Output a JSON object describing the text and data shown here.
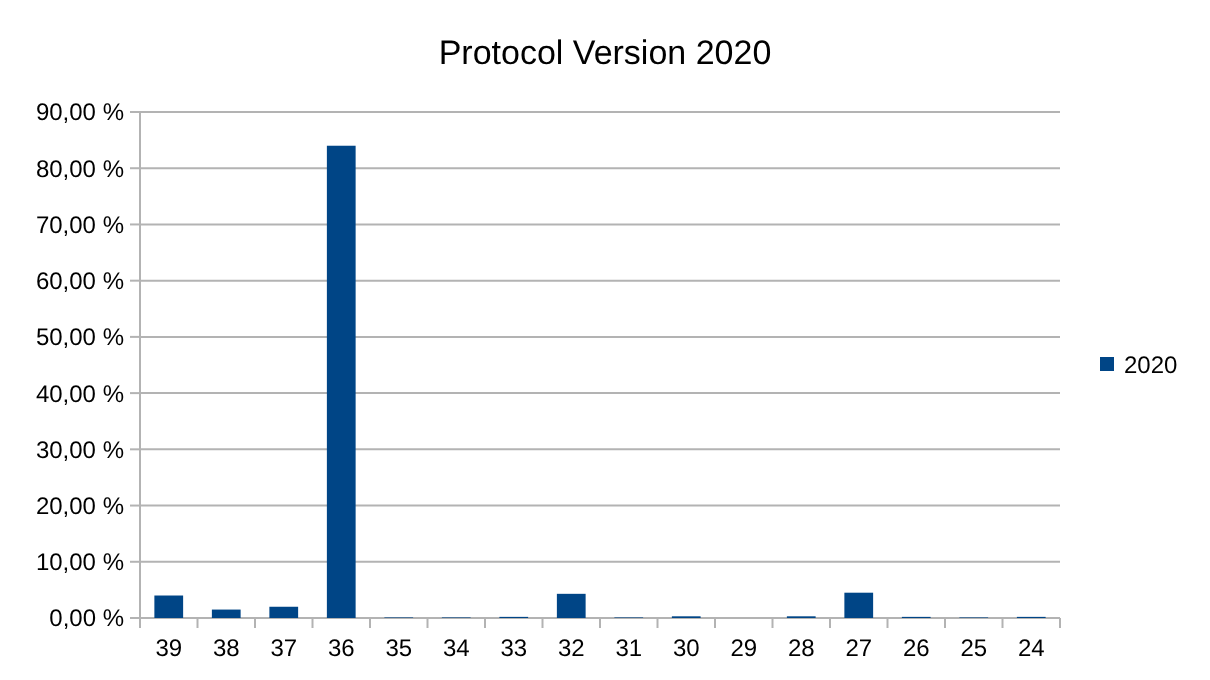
{
  "chart_data": {
    "type": "bar",
    "title": "Protocol Version 2020",
    "categories": [
      "39",
      "38",
      "37",
      "36",
      "35",
      "34",
      "33",
      "32",
      "31",
      "30",
      "29",
      "28",
      "27",
      "26",
      "25",
      "24"
    ],
    "series": [
      {
        "name": "2020",
        "color": "#004586",
        "values": [
          4,
          1.5,
          2,
          84,
          0.1,
          0.1,
          0.2,
          4.3,
          0.1,
          0.3,
          0,
          0.3,
          4.5,
          0.2,
          0.1,
          0.2
        ]
      }
    ],
    "ylim": [
      0,
      90
    ],
    "yticks": [
      {
        "value": 0,
        "label": "0,00 %"
      },
      {
        "value": 10,
        "label": "10,00 %"
      },
      {
        "value": 20,
        "label": "20,00 %"
      },
      {
        "value": 30,
        "label": "30,00 %"
      },
      {
        "value": 40,
        "label": "40,00 %"
      },
      {
        "value": 50,
        "label": "50,00 %"
      },
      {
        "value": 60,
        "label": "60,00 %"
      },
      {
        "value": 70,
        "label": "70,00 %"
      },
      {
        "value": 80,
        "label": "80,00 %"
      },
      {
        "value": 90,
        "label": "90,00 %"
      }
    ],
    "grid": "y",
    "legend": "right"
  }
}
